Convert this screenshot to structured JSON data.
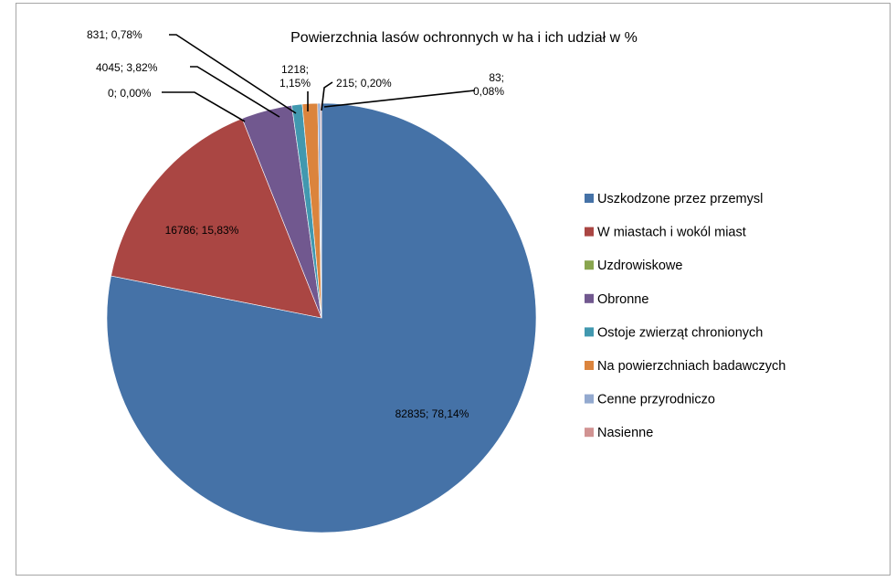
{
  "chart_data": {
    "type": "pie",
    "title": "Powierzchnia lasów ochronnych w ha i ich udział w %",
    "legend_position": "right",
    "slices": [
      {
        "name": "Uszkodzone przez przemysl",
        "value": 82835,
        "label": "82835; 78,14%",
        "color": "#4572a7"
      },
      {
        "name": "W miastach i wokól miast",
        "value": 16786,
        "label": "16786; 15,83%",
        "color": "#aa4643"
      },
      {
        "name": "Uzdrowiskowe",
        "value": 0,
        "label": "0; 0,00%",
        "color": "#89a54e"
      },
      {
        "name": "Obronne",
        "value": 4045,
        "label": "4045; 3,82%",
        "color": "#71588f"
      },
      {
        "name": "Ostoje zwierząt chronionych",
        "value": 831,
        "label": "831; 0,78%",
        "color": "#4198af"
      },
      {
        "name": "Na powierzchniach badawczych",
        "value": 1218,
        "label": "1218; 1,15%",
        "color": "#db843d"
      },
      {
        "name": "Cenne przyrodniczo",
        "value": 215,
        "label": "215; 0,20%",
        "color": "#93a9cf"
      },
      {
        "name": "Nasienne",
        "value": 83,
        "label": "83; 0,08%",
        "color": "#d19392"
      }
    ]
  }
}
